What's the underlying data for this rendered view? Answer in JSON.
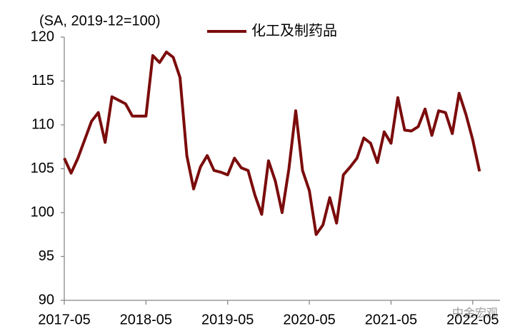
{
  "chart_data": {
    "type": "line",
    "y_label": "(SA, 2019-12=100)",
    "watermark": "中金宏观",
    "x": [
      "2017-05",
      "2017-06",
      "2017-07",
      "2017-08",
      "2017-09",
      "2017-10",
      "2017-11",
      "2017-12",
      "2018-01",
      "2018-02",
      "2018-03",
      "2018-04",
      "2018-05",
      "2018-06",
      "2018-07",
      "2018-08",
      "2018-09",
      "2018-10",
      "2018-11",
      "2018-12",
      "2019-01",
      "2019-02",
      "2019-03",
      "2019-04",
      "2019-05",
      "2019-06",
      "2019-07",
      "2019-08",
      "2019-09",
      "2019-10",
      "2019-11",
      "2019-12",
      "2020-01",
      "2020-02",
      "2020-03",
      "2020-04",
      "2020-05",
      "2020-06",
      "2020-07",
      "2020-08",
      "2020-09",
      "2020-10",
      "2020-11",
      "2020-12",
      "2021-01",
      "2021-02",
      "2021-03",
      "2021-04",
      "2021-05",
      "2021-06",
      "2021-07",
      "2021-08",
      "2021-09",
      "2021-10",
      "2021-11",
      "2021-12",
      "2022-01",
      "2022-02",
      "2022-03",
      "2022-04",
      "2022-05",
      "2022-06"
    ],
    "xticks": [
      "2017-05",
      "2018-05",
      "2019-05",
      "2020-05",
      "2021-05",
      "2022-05"
    ],
    "series": [
      {
        "name": "化工及制药品",
        "color": "#7b0c0c",
        "values": [
          106.2,
          104.5,
          106.2,
          108.3,
          110.4,
          111.4,
          108,
          113.2,
          112.8,
          112.4,
          111,
          111,
          111,
          117.9,
          117.1,
          118.3,
          117.7,
          115.4,
          106.5,
          102.7,
          105.2,
          106.5,
          104.8,
          104.6,
          104.3,
          106.2,
          105.1,
          104.8,
          102,
          99.8,
          105.9,
          103.6,
          100,
          105,
          111.6,
          104.8,
          102.5,
          97.5,
          98.6,
          101.7,
          98.8,
          104.3,
          105.2,
          106.2,
          108.5,
          107.9,
          105.7,
          109.2,
          107.9,
          113.1,
          109.4,
          109.3,
          109.8,
          111.8,
          108.8,
          111.6,
          111.4,
          109,
          113.6,
          111.2,
          108.3,
          104.7
        ]
      }
    ],
    "ylim": [
      90,
      120
    ],
    "yticks": [
      90,
      95,
      100,
      105,
      110,
      115,
      120
    ],
    "grid": false,
    "legend": "top"
  }
}
